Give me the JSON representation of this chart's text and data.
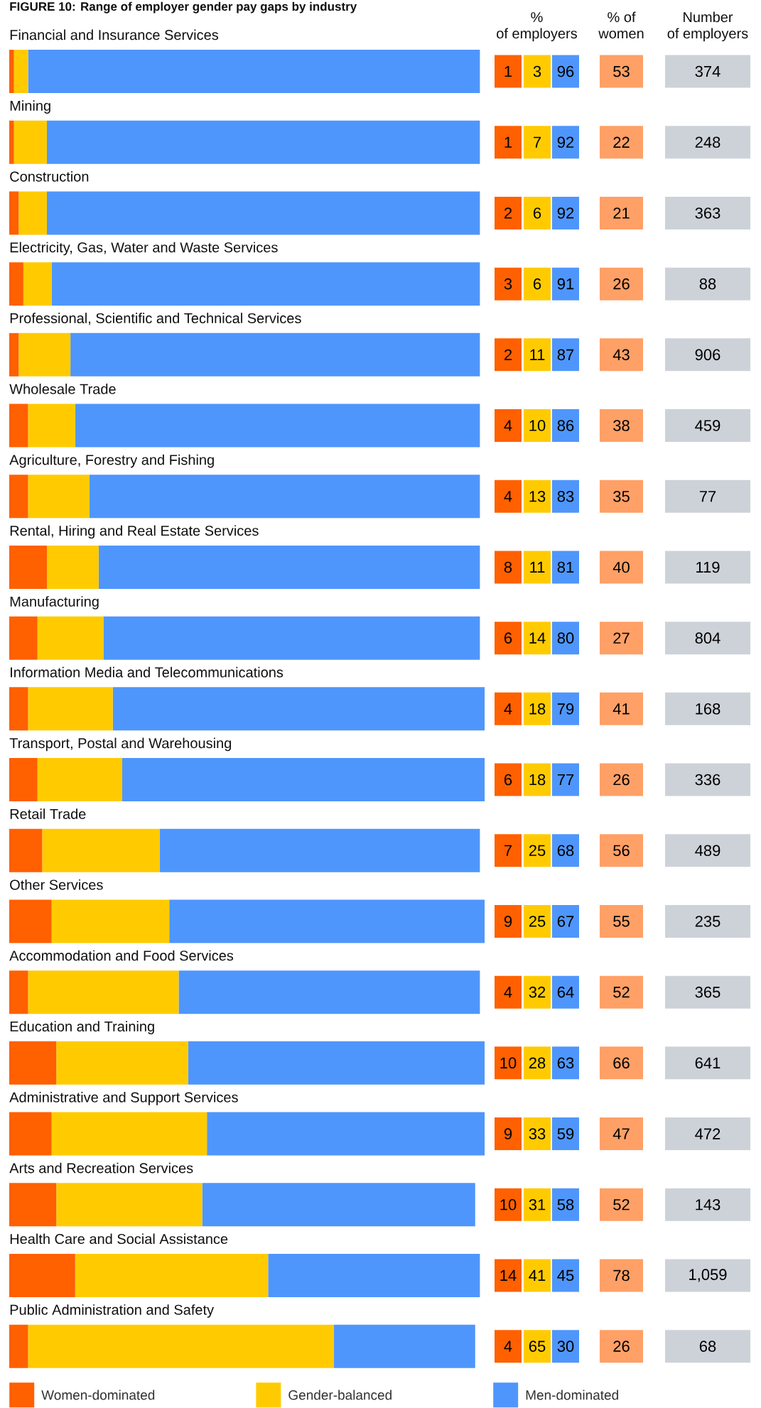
{
  "chart_data": {
    "type": "bar",
    "orientation": "horizontal",
    "stacked": true,
    "title": "FIGURE 10: Range of employer gender pay gaps by industry",
    "categories": [
      "Financial and Insurance Services",
      "Mining",
      "Construction",
      "Electricity, Gas, Water and Waste Services",
      "Professional, Scientific and Technical Services",
      "Wholesale Trade",
      "Agriculture, Forestry and Fishing",
      "Rental, Hiring and Real Estate Services",
      "Manufacturing",
      "Information Media and Telecommunications",
      "Transport, Postal and Warehousing",
      "Retail Trade",
      "Other Services",
      "Accommodation and Food Services",
      "Education and Training",
      "Administrative and Support Services",
      "Arts and Recreation Services",
      "Health Care and Social Assistance",
      "Public Administration and Safety"
    ],
    "series": [
      {
        "name": "Women-dominated",
        "color": "#ff6000",
        "values": [
          1,
          1,
          2,
          3,
          2,
          4,
          4,
          8,
          6,
          4,
          6,
          7,
          9,
          4,
          10,
          9,
          10,
          14,
          4
        ]
      },
      {
        "name": "Gender-balanced",
        "color": "#ffcb00",
        "values": [
          3,
          7,
          6,
          6,
          11,
          10,
          13,
          11,
          14,
          18,
          18,
          25,
          25,
          32,
          28,
          33,
          31,
          41,
          65
        ]
      },
      {
        "name": "Men-dominated",
        "color": "#4f96fc",
        "values": [
          96,
          92,
          92,
          91,
          87,
          86,
          83,
          81,
          80,
          79,
          77,
          68,
          67,
          64,
          63,
          59,
          58,
          45,
          30
        ]
      }
    ],
    "xlim": [
      0,
      101
    ],
    "data_labels": true,
    "legend": "bottom",
    "annotations": [
      "% of employers",
      "% of women",
      "Number of employers",
      "53",
      "22",
      "21",
      "26",
      "43",
      "38",
      "35",
      "40",
      "27",
      "41",
      "26",
      "56",
      "55",
      "52",
      "66",
      "47",
      "52",
      "78",
      "26",
      "374",
      "248",
      "363",
      "88",
      "906",
      "459",
      "77",
      "119",
      "804",
      "168",
      "336",
      "489",
      "235",
      "365",
      "641",
      "472",
      "143",
      "1,059",
      "68"
    ]
  }
}
